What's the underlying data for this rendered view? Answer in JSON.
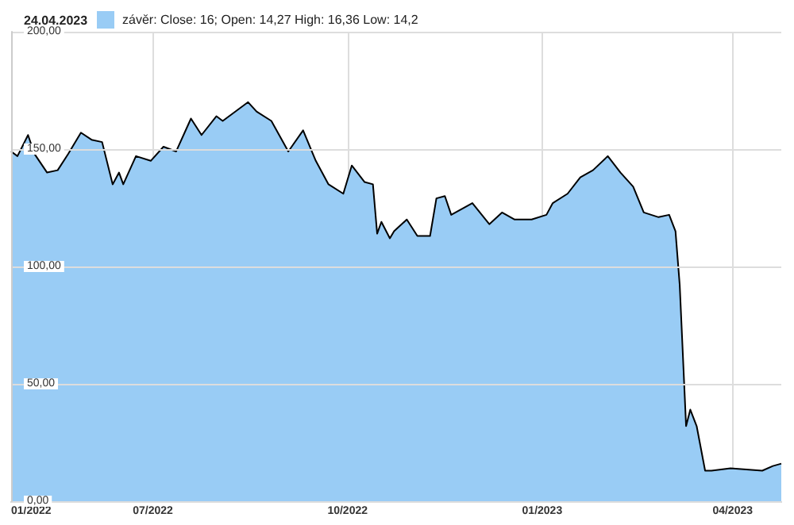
{
  "chart_data": {
    "type": "area",
    "title": "24.04.2023",
    "legend": "top left",
    "grid": true,
    "x": [
      "2022-04-25",
      "2022-04-28",
      "2022-05-03",
      "2022-05-06",
      "2022-05-12",
      "2022-05-17",
      "2022-05-22",
      "2022-05-28",
      "2022-06-02",
      "2022-06-07",
      "2022-06-12",
      "2022-06-15",
      "2022-06-17",
      "2022-06-23",
      "2022-06-30",
      "2022-07-06",
      "2022-07-12",
      "2022-07-19",
      "2022-07-24",
      "2022-07-31",
      "2022-08-03",
      "2022-08-15",
      "2022-08-19",
      "2022-08-26",
      "2022-09-03",
      "2022-09-10",
      "2022-09-16",
      "2022-09-22",
      "2022-09-29",
      "2022-10-03",
      "2022-10-09",
      "2022-10-13",
      "2022-10-15",
      "2022-10-17",
      "2022-10-21",
      "2022-10-23",
      "2022-10-29",
      "2022-11-03",
      "2022-11-09",
      "2022-11-12",
      "2022-11-16",
      "2022-11-19",
      "2022-11-29",
      "2022-12-07",
      "2022-12-13",
      "2022-12-19",
      "2022-12-27",
      "2023-01-03",
      "2023-01-06",
      "2023-01-13",
      "2023-01-19",
      "2023-01-25",
      "2023-02-01",
      "2023-02-07",
      "2023-02-13",
      "2023-02-18",
      "2023-02-25",
      "2023-03-02",
      "2023-03-05",
      "2023-03-07",
      "2023-03-10",
      "2023-03-12",
      "2023-03-15",
      "2023-03-19",
      "2023-03-22",
      "2023-03-31",
      "2023-04-15",
      "2023-04-20",
      "2023-04-24"
    ],
    "series": [
      {
        "name": "závěr: Close: 16; Open: 14,27 High: 16,36 Low: 14,2",
        "color": "#99ccf5",
        "values": [
          149,
          147,
          156,
          148,
          140,
          141,
          148,
          157,
          154,
          153,
          135,
          140,
          135,
          147,
          145,
          151,
          149,
          163,
          156,
          164,
          162,
          170,
          166,
          162,
          149,
          158,
          145,
          135,
          131,
          143,
          136,
          135,
          114,
          119,
          112,
          115,
          120,
          113,
          113,
          129,
          130,
          122,
          127,
          118,
          123,
          120,
          120,
          122,
          127,
          131,
          138,
          141,
          147,
          140,
          134,
          123,
          121,
          122,
          115,
          92,
          32,
          39,
          32,
          13,
          13,
          14,
          13,
          15,
          16
        ]
      }
    ],
    "xlim": [
      "2022-04-25",
      "2023-04-24"
    ],
    "xticks": [
      {
        "value": "2022-04-25",
        "label": "01/2022"
      },
      {
        "value": "2022-07-01",
        "label": "07/2022"
      },
      {
        "value": "2022-10-01",
        "label": "10/2022"
      },
      {
        "value": "2023-01-01",
        "label": "01/2023"
      },
      {
        "value": "2023-04-01",
        "label": "04/2023"
      }
    ],
    "ylim": [
      0,
      200
    ],
    "yticks": [
      {
        "value": 0,
        "label": "0,00"
      },
      {
        "value": 50,
        "label": "50,00"
      },
      {
        "value": 100,
        "label": "100,00"
      },
      {
        "value": 150,
        "label": "150,00"
      },
      {
        "value": 200,
        "label": "200,00"
      }
    ]
  }
}
